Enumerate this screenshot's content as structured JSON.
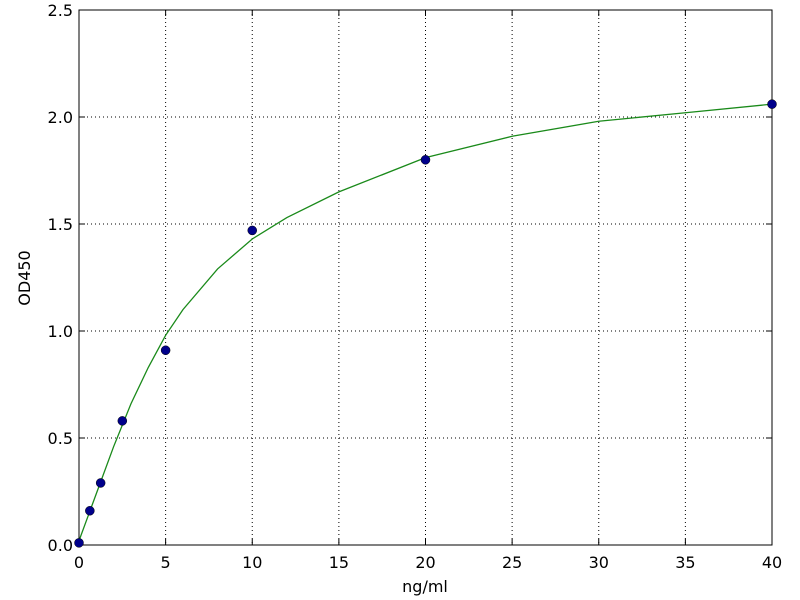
{
  "chart_data": {
    "type": "scatter",
    "xlabel": "ng/ml",
    "ylabel": "OD450",
    "xlim": [
      0,
      40
    ],
    "xticks": [
      0,
      5,
      10,
      15,
      20,
      25,
      30,
      35,
      40
    ],
    "ylim": [
      0,
      2.5
    ],
    "yticks": [
      {
        "value": 0,
        "label": "0.0"
      },
      0.5,
      {
        "value": 1,
        "label": "1.0"
      },
      1.5,
      {
        "value": 2,
        "label": "2.0"
      },
      2.5
    ],
    "grid": true,
    "series": [
      {
        "type": "scatter",
        "color": "#00008b",
        "x": [
          0,
          0.625,
          1.25,
          2.5,
          5,
          10,
          20,
          40
        ],
        "values": [
          0.01,
          0.16,
          0.29,
          0.58,
          0.91,
          1.47,
          1.8,
          2.06
        ]
      },
      {
        "type": "line",
        "color": "#1a8a1a",
        "x": [
          0,
          0.5,
          1,
          2,
          3,
          4,
          5,
          6,
          8,
          10,
          12,
          15,
          20,
          25,
          30,
          35,
          40
        ],
        "values": [
          0.02,
          0.13,
          0.24,
          0.46,
          0.66,
          0.83,
          0.98,
          1.1,
          1.29,
          1.43,
          1.53,
          1.65,
          1.81,
          1.91,
          1.98,
          2.02,
          2.06
        ]
      }
    ]
  }
}
